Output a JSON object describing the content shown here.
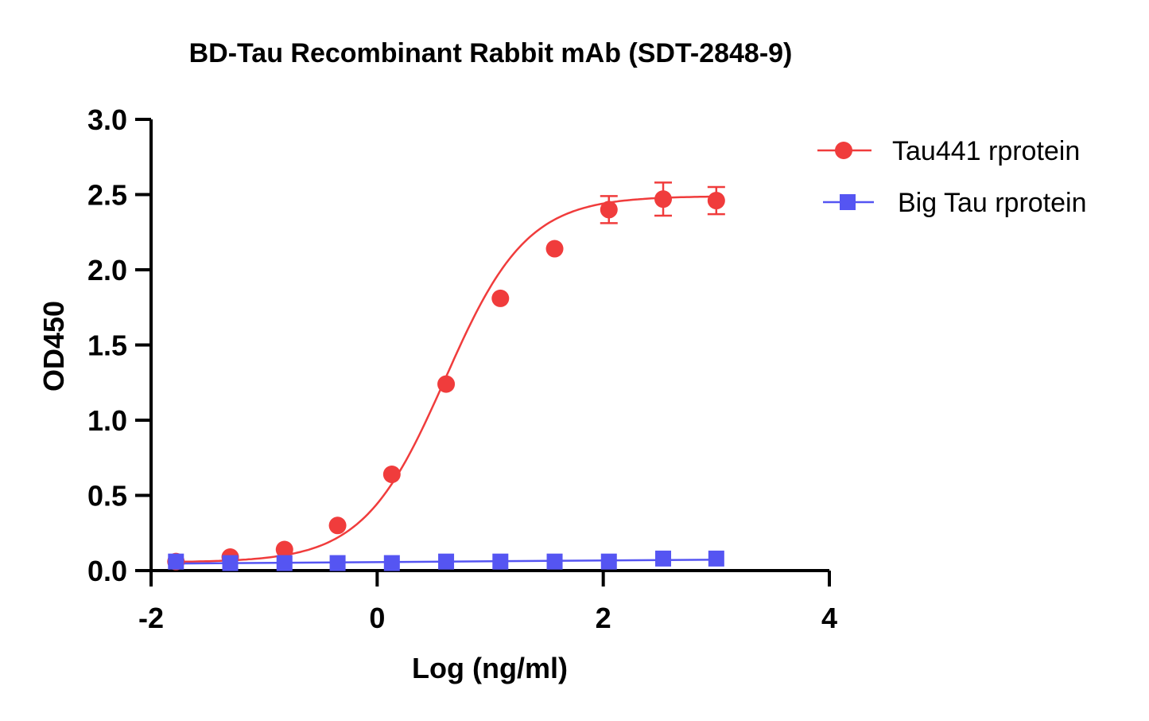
{
  "chart_data": {
    "type": "scatter",
    "title": "BD-Tau Recombinant Rabbit mAb (SDT-2848-9)",
    "xlabel": "Log (ng/ml)",
    "ylabel": "OD450",
    "xlim": [
      -2,
      4
    ],
    "ylim": [
      0,
      3.0
    ],
    "x_ticks": [
      -2,
      0,
      2,
      4
    ],
    "x_tick_labels": [
      "-2",
      "0",
      "2",
      "4"
    ],
    "y_ticks": [
      0,
      0.5,
      1.0,
      1.5,
      2.0,
      2.5,
      3.0
    ],
    "y_tick_labels": [
      "0.0",
      "0.5",
      "1.0",
      "1.5",
      "2.0",
      "2.5",
      "3.0"
    ],
    "grid": false,
    "legend_position": "top-right",
    "series": [
      {
        "name": "Tau441 rprotein",
        "color": "#f03c3c",
        "marker": "circle",
        "fit": "4PL",
        "fit_params": {
          "bottom": 0.055,
          "top": 2.49,
          "log_ec50": 0.6,
          "hill": 1.2
        },
        "x": [
          -1.78,
          -1.3,
          -0.82,
          -0.35,
          0.13,
          0.61,
          1.09,
          1.57,
          2.05,
          2.53,
          3.0
        ],
        "y": [
          0.06,
          0.09,
          0.14,
          0.3,
          0.64,
          1.24,
          1.81,
          2.14,
          2.4,
          2.47,
          2.46
        ],
        "error": [
          0,
          0,
          0,
          0,
          0,
          0,
          0,
          0,
          0.09,
          0.11,
          0.09
        ]
      },
      {
        "name": "Big Tau rprotein",
        "color": "#5555f2",
        "marker": "square",
        "fit": "line",
        "x": [
          -1.78,
          -1.3,
          -0.82,
          -0.35,
          0.13,
          0.61,
          1.09,
          1.57,
          2.05,
          2.53,
          3.0
        ],
        "y": [
          0.06,
          0.05,
          0.05,
          0.05,
          0.05,
          0.06,
          0.06,
          0.06,
          0.06,
          0.08,
          0.08
        ],
        "error": [
          0,
          0,
          0,
          0,
          0,
          0,
          0,
          0,
          0,
          0,
          0
        ]
      }
    ]
  }
}
